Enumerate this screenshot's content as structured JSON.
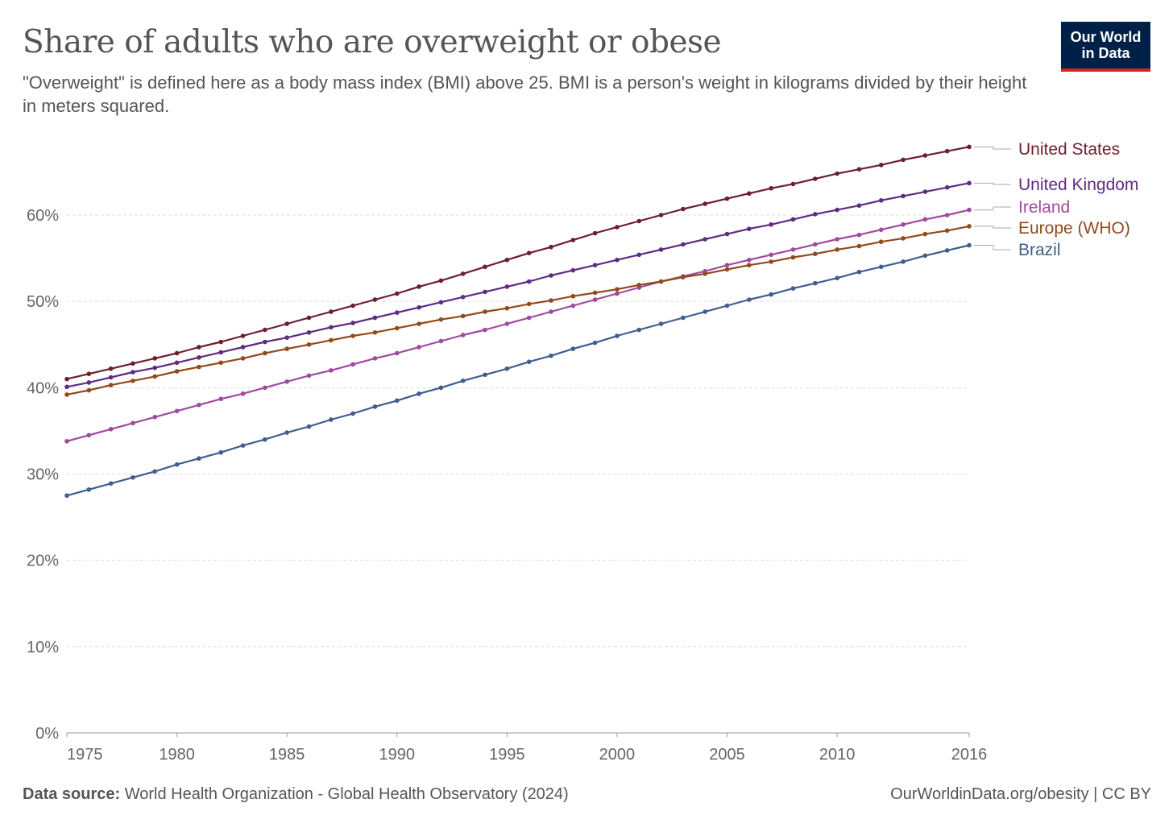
{
  "header": {
    "title": "Share of adults who are overweight or obese",
    "subtitle": "\"Overweight\" is defined here as a body mass index (BMI) above 25. BMI is a person's weight in kilograms divided by their height in meters squared."
  },
  "logo": {
    "line1": "Our World",
    "line2": "in Data",
    "bg_color": "#002147",
    "accent_color": "#ce261e"
  },
  "footer": {
    "source_label": "Data source:",
    "source_text": "World Health Organization - Global Health Observatory (2024)",
    "url": "OurWorldinData.org/obesity",
    "license": "| CC BY"
  },
  "chart_data": {
    "type": "line",
    "x_range": [
      1975,
      2016
    ],
    "ylim": [
      0,
      70
    ],
    "y_ticks": [
      0,
      10,
      20,
      30,
      40,
      50,
      60
    ],
    "y_tick_labels": [
      "0%",
      "10%",
      "20%",
      "30%",
      "40%",
      "50%",
      "60%"
    ],
    "x_ticks": [
      1975,
      1980,
      1985,
      1990,
      1995,
      2000,
      2005,
      2010,
      2016
    ],
    "x_tick_labels": [
      "1975",
      "1980",
      "1985",
      "1990",
      "1995",
      "2000",
      "2005",
      "2010",
      "2016"
    ],
    "grid": true,
    "legend": "right, labels at line ends",
    "series": [
      {
        "name": "United States",
        "color": "#6d1e2d",
        "values": [
          41.0,
          41.6,
          42.2,
          42.8,
          43.4,
          44.0,
          44.7,
          45.3,
          46.0,
          46.7,
          47.4,
          48.1,
          48.8,
          49.5,
          50.2,
          50.9,
          51.7,
          52.4,
          53.2,
          54.0,
          54.8,
          55.6,
          56.3,
          57.1,
          57.9,
          58.6,
          59.3,
          60.0,
          60.7,
          61.3,
          61.9,
          62.5,
          63.1,
          63.6,
          64.2,
          64.8,
          65.3,
          65.8,
          66.4,
          66.9,
          67.4,
          67.9
        ]
      },
      {
        "name": "United Kingdom",
        "color": "#5e2b82",
        "values": [
          40.1,
          40.6,
          41.2,
          41.8,
          42.3,
          42.9,
          43.5,
          44.1,
          44.7,
          45.3,
          45.8,
          46.4,
          47.0,
          47.5,
          48.1,
          48.7,
          49.3,
          49.9,
          50.5,
          51.1,
          51.7,
          52.3,
          53.0,
          53.6,
          54.2,
          54.8,
          55.4,
          56.0,
          56.6,
          57.2,
          57.8,
          58.4,
          58.9,
          59.5,
          60.1,
          60.6,
          61.1,
          61.7,
          62.2,
          62.7,
          63.2,
          63.7
        ]
      },
      {
        "name": "Ireland",
        "color": "#a04a9e",
        "values": [
          33.8,
          34.5,
          35.2,
          35.9,
          36.6,
          37.3,
          38.0,
          38.7,
          39.3,
          40.0,
          40.7,
          41.4,
          42.0,
          42.7,
          43.4,
          44.0,
          44.7,
          45.4,
          46.1,
          46.7,
          47.4,
          48.1,
          48.8,
          49.5,
          50.2,
          50.9,
          51.6,
          52.3,
          52.9,
          53.5,
          54.2,
          54.8,
          55.4,
          56.0,
          56.6,
          57.2,
          57.7,
          58.3,
          58.9,
          59.5,
          60.0,
          60.6
        ]
      },
      {
        "name": "Europe (WHO)",
        "color": "#924a1c",
        "values": [
          39.2,
          39.7,
          40.3,
          40.8,
          41.3,
          41.9,
          42.4,
          42.9,
          43.4,
          44.0,
          44.5,
          45.0,
          45.5,
          46.0,
          46.4,
          46.9,
          47.4,
          47.9,
          48.3,
          48.8,
          49.2,
          49.7,
          50.1,
          50.6,
          51.0,
          51.4,
          51.9,
          52.3,
          52.8,
          53.2,
          53.7,
          54.2,
          54.6,
          55.1,
          55.5,
          56.0,
          56.4,
          56.9,
          57.3,
          57.8,
          58.2,
          58.7
        ]
      },
      {
        "name": "Brazil",
        "color": "#3e5f8e",
        "values": [
          27.5,
          28.2,
          28.9,
          29.6,
          30.3,
          31.1,
          31.8,
          32.5,
          33.3,
          34.0,
          34.8,
          35.5,
          36.3,
          37.0,
          37.8,
          38.5,
          39.3,
          40.0,
          40.8,
          41.5,
          42.2,
          43.0,
          43.7,
          44.5,
          45.2,
          46.0,
          46.7,
          47.4,
          48.1,
          48.8,
          49.5,
          50.2,
          50.8,
          51.5,
          52.1,
          52.7,
          53.4,
          54.0,
          54.6,
          55.3,
          55.9,
          56.5
        ]
      }
    ]
  }
}
